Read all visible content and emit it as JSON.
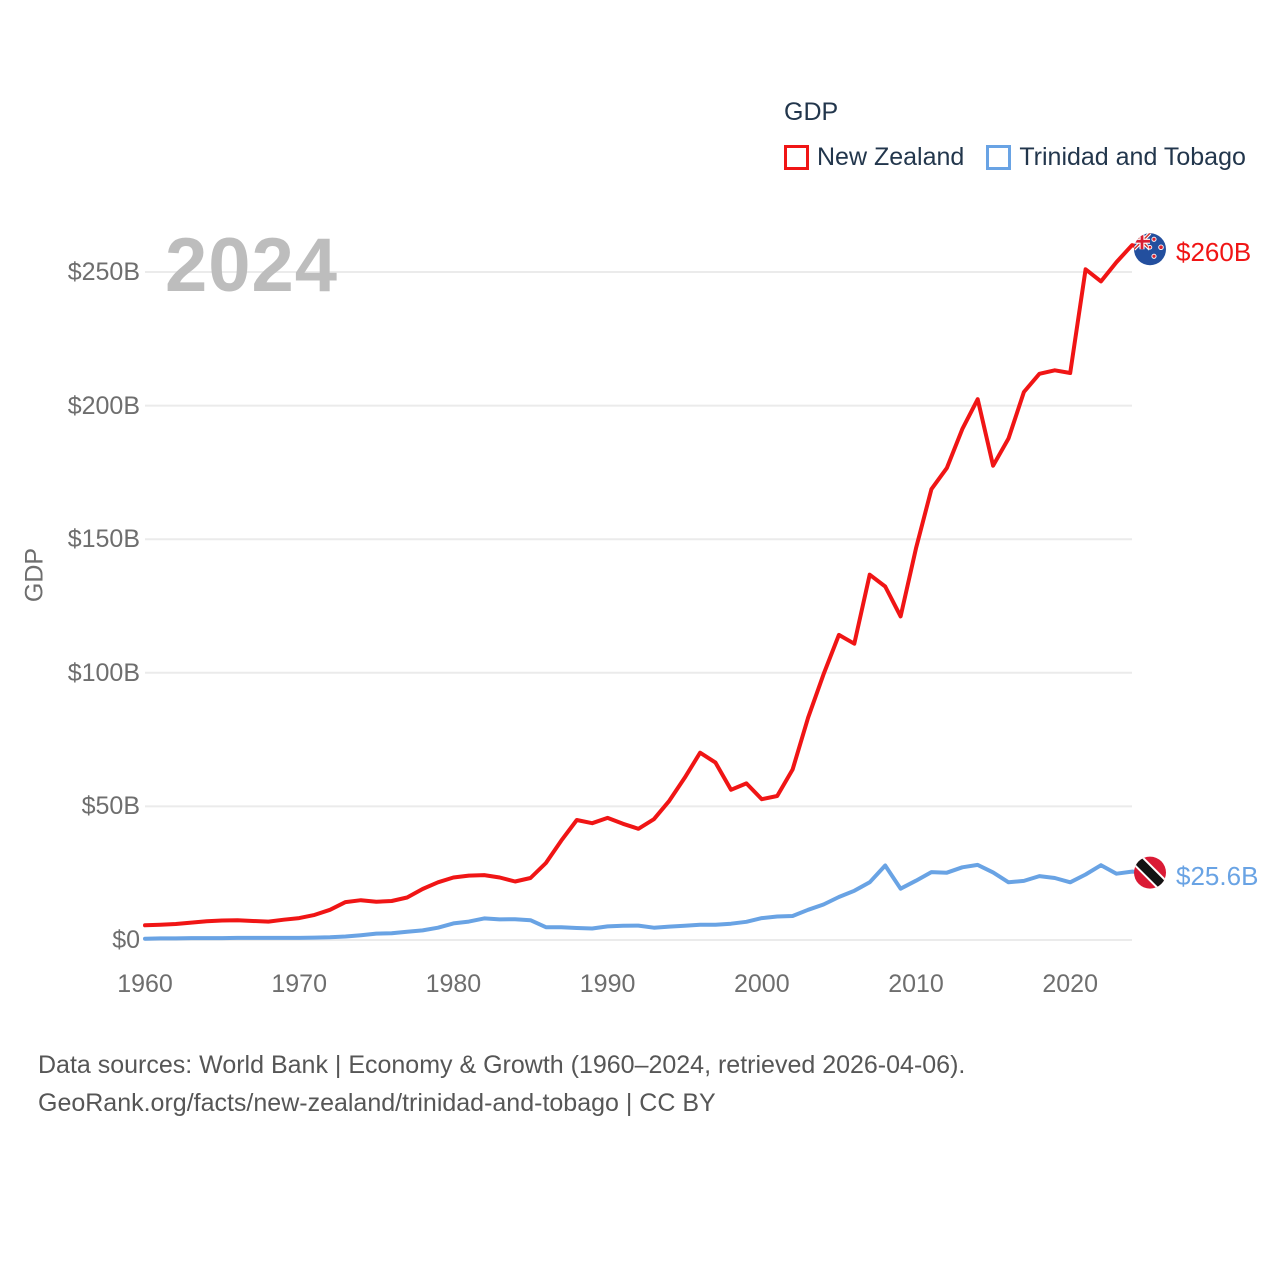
{
  "watermark": "2024",
  "legend": {
    "title": "GDP",
    "items": [
      {
        "label": "New Zealand",
        "color": "#f01515"
      },
      {
        "label": "Trinidad and Tobago",
        "color": "#69a3e4"
      }
    ]
  },
  "end_labels": {
    "new_zealand": "$260B",
    "trinidad_and_tobago": "$25.6B"
  },
  "footer": {
    "line1": "Data sources: World Bank | Economy & Growth (1960–2024, retrieved 2026-04-06).",
    "line2": "GeoRank.org/facts/new-zealand/trinidad-and-tobago | CC BY"
  },
  "colors": {
    "new_zealand": "#f01515",
    "trinidad_and_tobago": "#69a3e4",
    "gridline": "#ebebeb",
    "tick_text": "#6e6e6e",
    "legend_text": "#22364c",
    "watermark": "#bdbdbd"
  },
  "chart_data": {
    "type": "line",
    "title": "GDP",
    "ylabel": "GDP",
    "xlabel": "",
    "grid": "horizontal",
    "legend_position": "top-right",
    "xlim": [
      1960,
      2024
    ],
    "ylim": [
      0,
      265
    ],
    "x_ticks": [
      1960,
      1970,
      1980,
      1990,
      2000,
      2010,
      2020
    ],
    "y_ticks": [
      {
        "value": 0,
        "label": "$0"
      },
      {
        "value": 50,
        "label": "$50B"
      },
      {
        "value": 100,
        "label": "$100B"
      },
      {
        "value": 150,
        "label": "$150B"
      },
      {
        "value": 200,
        "label": "$200B"
      },
      {
        "value": 250,
        "label": "$250B"
      }
    ],
    "x": [
      1960,
      1961,
      1962,
      1963,
      1964,
      1965,
      1966,
      1967,
      1968,
      1969,
      1970,
      1971,
      1972,
      1973,
      1974,
      1975,
      1976,
      1977,
      1978,
      1979,
      1980,
      1981,
      1982,
      1983,
      1984,
      1985,
      1986,
      1987,
      1988,
      1989,
      1990,
      1991,
      1992,
      1993,
      1994,
      1995,
      1996,
      1997,
      1998,
      1999,
      2000,
      2001,
      2002,
      2003,
      2004,
      2005,
      2006,
      2007,
      2008,
      2009,
      2010,
      2011,
      2012,
      2013,
      2014,
      2015,
      2016,
      2017,
      2018,
      2019,
      2020,
      2021,
      2022,
      2023,
      2024
    ],
    "series": [
      {
        "name": "New Zealand",
        "color": "#f01515",
        "unit": "billion USD",
        "values": [
          5.5,
          5.7,
          6.0,
          6.5,
          7.0,
          7.3,
          7.4,
          7.1,
          6.9,
          7.6,
          8.2,
          9.4,
          11.3,
          14.2,
          14.9,
          14.3,
          14.6,
          15.9,
          19.1,
          21.6,
          23.4,
          24.1,
          24.3,
          23.4,
          21.9,
          23.2,
          28.8,
          37.2,
          44.9,
          43.7,
          45.7,
          43.5,
          41.6,
          45.2,
          52.1,
          60.7,
          70.1,
          66.4,
          56.2,
          58.6,
          52.7,
          53.9,
          63.8,
          83.2,
          99.4,
          114.2,
          110.9,
          136.7,
          132.3,
          121.1,
          146.6,
          168.7,
          176.6,
          191.2,
          202.4,
          177.5,
          187.7,
          205.1,
          211.9,
          213.2,
          212.2,
          251.0,
          246.5,
          253.7,
          260.0
        ]
      },
      {
        "name": "Trinidad and Tobago",
        "color": "#69a3e4",
        "unit": "billion USD",
        "values": [
          0.5,
          0.6,
          0.6,
          0.7,
          0.7,
          0.7,
          0.8,
          0.8,
          0.8,
          0.8,
          0.8,
          0.9,
          1.0,
          1.3,
          1.8,
          2.4,
          2.5,
          3.1,
          3.6,
          4.6,
          6.2,
          6.9,
          8.1,
          7.7,
          7.8,
          7.4,
          4.8,
          4.8,
          4.5,
          4.3,
          5.1,
          5.3,
          5.4,
          4.6,
          5.0,
          5.3,
          5.7,
          5.7,
          6.1,
          6.8,
          8.2,
          8.8,
          9.0,
          11.3,
          13.3,
          16.1,
          18.4,
          21.6,
          27.9,
          19.2,
          22.2,
          25.4,
          25.2,
          27.2,
          28.1,
          25.3,
          21.6,
          22.1,
          23.9,
          23.2,
          21.6,
          24.5,
          28.0,
          24.8,
          25.6
        ]
      }
    ]
  }
}
